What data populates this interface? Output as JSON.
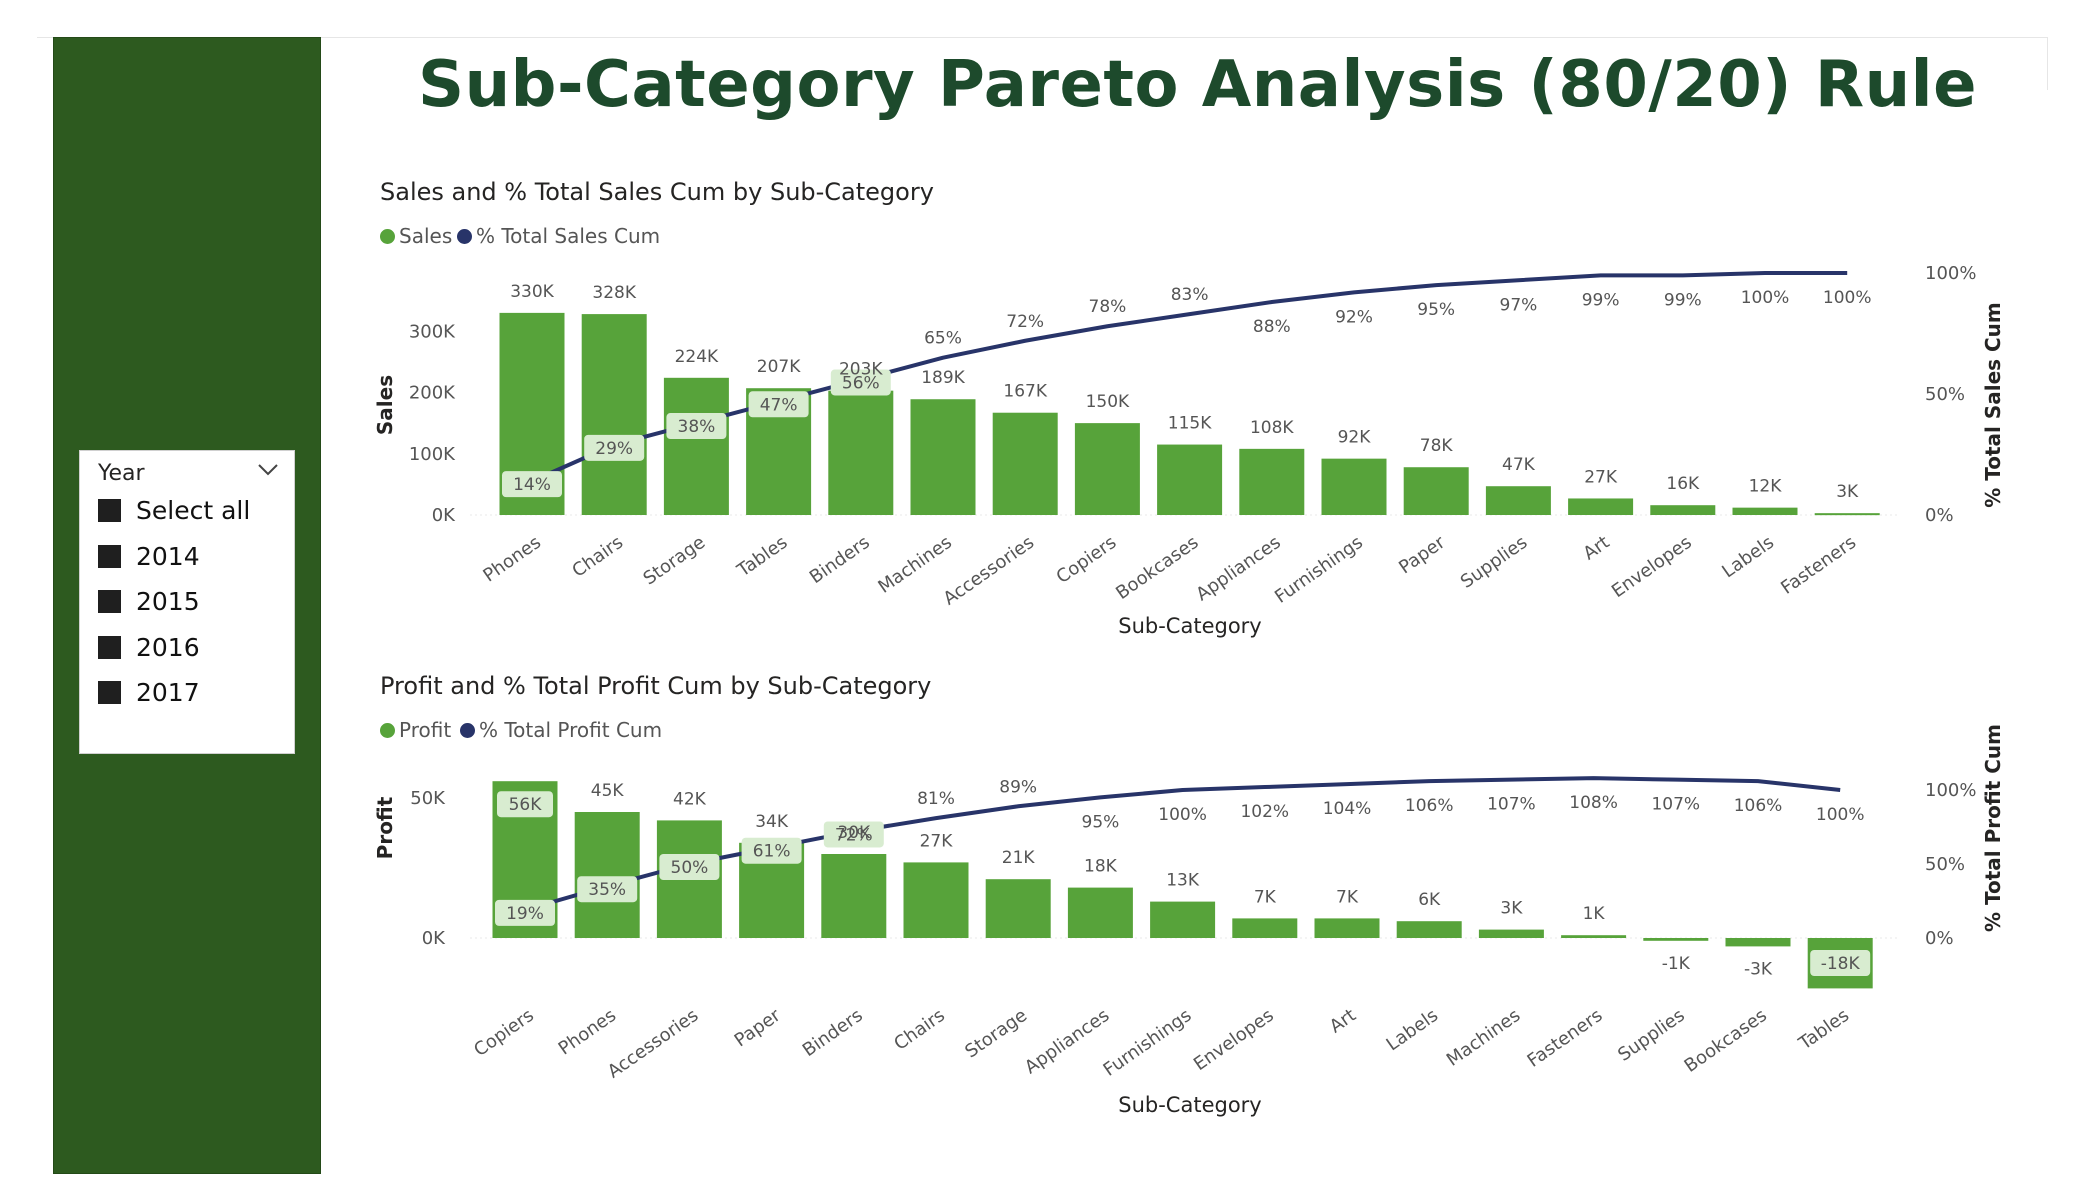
{
  "page": {
    "title": "Sub-Category Pareto Analysis (80/20) Rule"
  },
  "slicer": {
    "title": "Year",
    "items": [
      {
        "label": "Select all"
      },
      {
        "label": "2014"
      },
      {
        "label": "2015"
      },
      {
        "label": "2016"
      },
      {
        "label": "2017"
      }
    ]
  },
  "colors": {
    "sidebar": "#2d5a1f",
    "bar": "#57a33a",
    "line": "#283469",
    "title": "#1d4a2c",
    "pct_label_bg": "#d8ecd0"
  },
  "chart_data": [
    {
      "type": "bar",
      "combo_line": true,
      "title": "Sales and % Total Sales Cum by Sub-Category",
      "legend": [
        "Sales",
        "% Total Sales Cum"
      ],
      "legend_position": "top-left",
      "xlabel": "Sub-Category",
      "ylabel": "Sales",
      "y2label": "% Total Sales Cum",
      "ylim": [
        0,
        400000
      ],
      "y2lim": [
        0,
        100
      ],
      "yticks": [
        "0K",
        "100K",
        "200K",
        "300K"
      ],
      "y2ticks": [
        "0%",
        "50%",
        "100%"
      ],
      "categories": [
        "Phones",
        "Chairs",
        "Storage",
        "Tables",
        "Binders",
        "Machines",
        "Accessories",
        "Copiers",
        "Bookcases",
        "Appliances",
        "Furnishings",
        "Paper",
        "Supplies",
        "Art",
        "Envelopes",
        "Labels",
        "Fasteners"
      ],
      "series": [
        {
          "name": "Sales",
          "values": [
            330000,
            328000,
            224000,
            207000,
            203000,
            189000,
            167000,
            150000,
            115000,
            108000,
            92000,
            78000,
            47000,
            27000,
            16000,
            12000,
            3000
          ],
          "labels": [
            "330K",
            "328K",
            "224K",
            "207K",
            "203K",
            "189K",
            "167K",
            "150K",
            "115K",
            "108K",
            "92K",
            "78K",
            "47K",
            "27K",
            "16K",
            "12K",
            "3K"
          ]
        },
        {
          "name": "% Total Sales Cum",
          "values": [
            14,
            29,
            38,
            47,
            56,
            65,
            72,
            78,
            83,
            88,
            92,
            95,
            97,
            99,
            99,
            100,
            100
          ],
          "labels": [
            "14%",
            "29%",
            "38%",
            "47%",
            "56%",
            "65%",
            "72%",
            "78%",
            "83%",
            "88%",
            "92%",
            "95%",
            "97%",
            "99%",
            "99%",
            "100%",
            "100%"
          ]
        }
      ]
    },
    {
      "type": "bar",
      "combo_line": true,
      "title": "Profit and % Total Profit Cum by Sub-Category",
      "legend": [
        "Profit",
        "% Total Profit Cum"
      ],
      "legend_position": "top-left",
      "xlabel": "Sub-Category",
      "ylabel": "Profit",
      "y2label": "% Total Profit Cum",
      "ylim": [
        -20000,
        60000
      ],
      "y2lim": [
        0,
        110
      ],
      "yticks": [
        "0K",
        "50K"
      ],
      "y2ticks": [
        "0%",
        "50%",
        "100%"
      ],
      "categories": [
        "Copiers",
        "Phones",
        "Accessories",
        "Paper",
        "Binders",
        "Chairs",
        "Storage",
        "Appliances",
        "Furnishings",
        "Envelopes",
        "Art",
        "Labels",
        "Machines",
        "Fasteners",
        "Supplies",
        "Bookcases",
        "Tables"
      ],
      "series": [
        {
          "name": "Profit",
          "values": [
            56000,
            45000,
            42000,
            34000,
            30000,
            27000,
            21000,
            18000,
            13000,
            7000,
            7000,
            6000,
            3000,
            1000,
            -1000,
            -3000,
            -18000
          ],
          "labels": [
            "56K",
            "45K",
            "42K",
            "34K",
            "30K",
            "27K",
            "21K",
            "18K",
            "13K",
            "7K",
            "7K",
            "6K",
            "3K",
            "1K",
            "-1K",
            "-3K",
            "-18K"
          ]
        },
        {
          "name": "% Total Profit Cum",
          "values": [
            19,
            35,
            50,
            61,
            72,
            81,
            89,
            95,
            100,
            102,
            104,
            106,
            107,
            108,
            107,
            106,
            100
          ],
          "labels": [
            "19%",
            "35%",
            "50%",
            "61%",
            "72%",
            "81%",
            "89%",
            "95%",
            "100%",
            "102%",
            "104%",
            "106%",
            "107%",
            "108%",
            "107%",
            "106%",
            "100%"
          ]
        }
      ]
    }
  ]
}
